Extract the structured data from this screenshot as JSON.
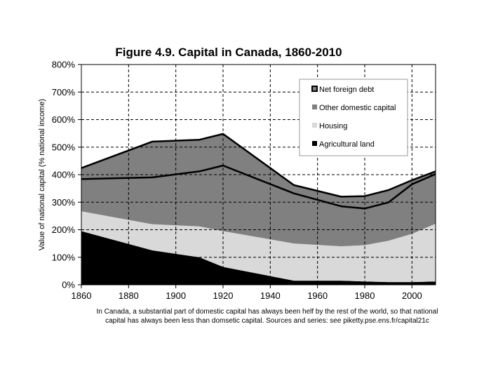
{
  "chart_data": {
    "type": "area",
    "title": "Figure 4.9. Capital in Canada, 1860-2010",
    "xlabel": "",
    "ylabel": "Value of national capital (% national income)",
    "x_ticks": [
      "1860",
      "1880",
      "1900",
      "1920",
      "1940",
      "1960",
      "1980",
      "2000"
    ],
    "y_ticks": [
      "0%",
      "100%",
      "200%",
      "300%",
      "400%",
      "500%",
      "600%",
      "700%",
      "800%"
    ],
    "xlim": [
      1860,
      2010
    ],
    "ylim": [
      0,
      800
    ],
    "grid": true,
    "legend_position": "top-right",
    "x": [
      1860,
      1890,
      1910,
      1920,
      1950,
      1970,
      1980,
      1990,
      2000,
      2010
    ],
    "series": [
      {
        "name": "Agricultural land",
        "color": "#000000",
        "values": [
          195,
          125,
          100,
          65,
          15,
          15,
          12,
          10,
          10,
          12
        ]
      },
      {
        "name": "Housing",
        "color": "#d9d9d9",
        "values": [
          72,
          95,
          112,
          130,
          135,
          125,
          132,
          150,
          175,
          210
        ]
      },
      {
        "name": "Other domestic capital",
        "color": "#808080",
        "values": [
          117,
          170,
          200,
          238,
          182,
          145,
          133,
          139,
          180,
          180
        ]
      },
      {
        "name": "Net foreign debt",
        "color": "#808080",
        "values": [
          40,
          130,
          115,
          115,
          30,
          35,
          45,
          45,
          15,
          10
        ]
      }
    ],
    "national_capital_line": [
      384,
      390,
      412,
      433,
      332,
      285,
      277,
      299,
      365,
      402
    ],
    "domestic_capital_line": [
      424,
      520,
      527,
      548,
      362,
      320,
      322,
      344,
      380,
      412
    ]
  },
  "caption": {
    "line1": "In Canada, a substantial part of domestic capital has always been helf by the rest of the world, so that national",
    "line2": "capital has always been less than domsetic capital. Sources and series: see piketty.pse.ens.fr/capital21c"
  }
}
